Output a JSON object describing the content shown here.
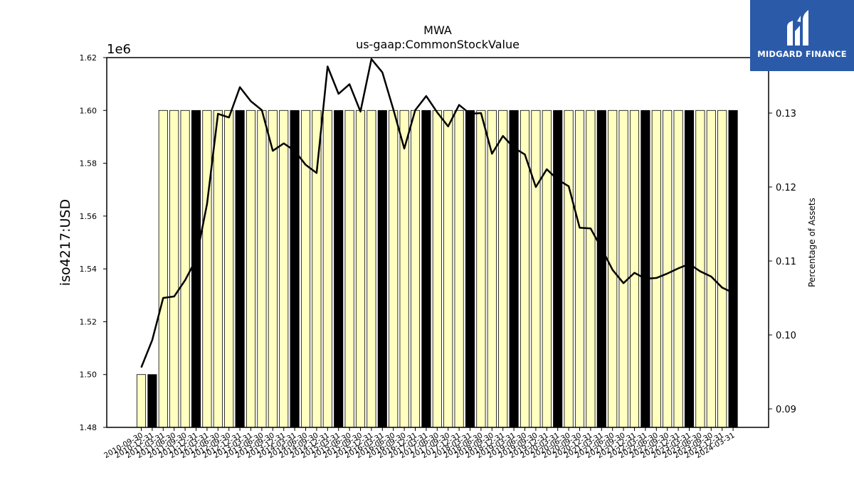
{
  "chart_data": {
    "type": "bar",
    "title": "MWA",
    "subtitle": "us-gaap:CommonStockValue",
    "ylabel": "iso4217:USD",
    "y_offset_label": "1e6",
    "y2label": "Percentage of Assets",
    "ylim": [
      1480000,
      1620000
    ],
    "y2lim": [
      0.0875,
      0.1375
    ],
    "yticks": [
      "1.48",
      "1.50",
      "1.52",
      "1.54",
      "1.56",
      "1.58",
      "1.60",
      "1.62"
    ],
    "y2ticks": [
      "0.09",
      "0.10",
      "0.11",
      "0.12",
      "0.13"
    ],
    "legend": "none",
    "grid": false,
    "categories": [
      "2010-09-30",
      "2010-12-31",
      "2011-03-31",
      "2011-06-30",
      "2011-09-30",
      "2011-12-31",
      "2012-03-31",
      "2012-06-30",
      "2012-09-30",
      "2012-12-31",
      "2013-03-31",
      "2013-06-30",
      "2013-09-30",
      "2013-12-31",
      "2014-03-31",
      "2014-06-30",
      "2014-09-30",
      "2014-12-31",
      "2015-03-31",
      "2015-06-30",
      "2015-09-30",
      "2015-12-31",
      "2016-03-31",
      "2016-06-30",
      "2016-09-30",
      "2016-12-31",
      "2017-03-31",
      "2017-06-30",
      "2017-09-30",
      "2017-12-31",
      "2018-03-31",
      "2018-06-30",
      "2018-09-30",
      "2018-12-31",
      "2019-03-31",
      "2019-06-30",
      "2019-09-30",
      "2019-12-31",
      "2020-03-31",
      "2020-06-30",
      "2020-09-30",
      "2020-12-31",
      "2021-03-31",
      "2021-06-30",
      "2021-09-30",
      "2021-12-31",
      "2022-03-31",
      "2022-06-30",
      "2022-09-30",
      "2022-12-31",
      "2023-03-31",
      "2023-06-30",
      "2023-09-30",
      "2023-12-31",
      "2024-03-31"
    ],
    "series": [
      {
        "values": [
          1500000,
          1500000,
          1600000,
          1600000,
          1600000,
          1600000,
          1600000,
          1600000,
          1600000,
          1600000,
          1600000,
          1600000,
          1600000,
          1600000,
          1600000,
          1600000,
          1600000,
          1600000,
          1600000,
          1600000,
          1600000,
          1600000,
          1600000,
          1600000,
          1600000,
          1600000,
          1600000,
          1600000,
          1600000,
          1600000,
          1600000,
          1600000,
          1600000,
          1600000,
          1600000,
          1600000,
          1600000,
          1600000,
          1600000,
          1600000,
          1600000,
          1600000,
          1600000,
          1600000,
          1600000,
          1600000,
          1600000,
          1600000,
          1600000,
          1600000,
          1600000,
          1600000,
          1600000,
          1600000,
          1600000
        ],
        "bar_colors": [
          "#ffffc0",
          "#000000",
          "#ffffc0",
          "#ffffc0",
          "#ffffc0",
          "#000000",
          "#ffffc0",
          "#ffffc0",
          "#ffffc0",
          "#000000",
          "#ffffc0",
          "#ffffc0",
          "#ffffc0",
          "#ffffc0",
          "#000000",
          "#ffffc0",
          "#ffffc0",
          "#ffffc0",
          "#000000",
          "#ffffc0",
          "#ffffc0",
          "#ffffc0",
          "#000000",
          "#ffffc0",
          "#ffffc0",
          "#ffffc0",
          "#000000",
          "#ffffc0",
          "#ffffc0",
          "#ffffc0",
          "#000000",
          "#ffffc0",
          "#ffffc0",
          "#ffffc0",
          "#000000",
          "#ffffc0",
          "#ffffc0",
          "#ffffc0",
          "#000000",
          "#ffffc0",
          "#ffffc0",
          "#ffffc0",
          "#000000",
          "#ffffc0",
          "#ffffc0",
          "#ffffc0",
          "#000000",
          "#ffffc0",
          "#ffffc0",
          "#ffffc0",
          "#000000",
          "#ffffc0",
          "#ffffc0",
          "#ffffc0",
          "#000000"
        ]
      },
      {
        "axis": "right",
        "type": "line",
        "color": "#000000",
        "values": [
          0.0956,
          0.0993,
          0.105,
          0.1052,
          0.1074,
          0.1102,
          0.1177,
          0.1299,
          0.1294,
          0.1335,
          0.1316,
          0.1304,
          0.1249,
          0.1259,
          0.1249,
          0.123,
          0.1219,
          0.1363,
          0.1326,
          0.1339,
          0.1302,
          0.1373,
          0.1355,
          0.1305,
          0.1252,
          0.1304,
          0.1323,
          0.1301,
          0.1282,
          0.1311,
          0.1299,
          0.13,
          0.1245,
          0.1269,
          0.1253,
          0.1244,
          0.12,
          0.1224,
          0.121,
          0.1201,
          0.1145,
          0.1144,
          0.1117,
          0.1088,
          0.107,
          0.1084,
          0.1076,
          0.1077,
          0.1083,
          0.109,
          0.1096,
          0.1086,
          0.1079,
          0.1064,
          0.1057
        ]
      }
    ]
  },
  "logo": {
    "text": "MIDGARD FINANCE"
  }
}
